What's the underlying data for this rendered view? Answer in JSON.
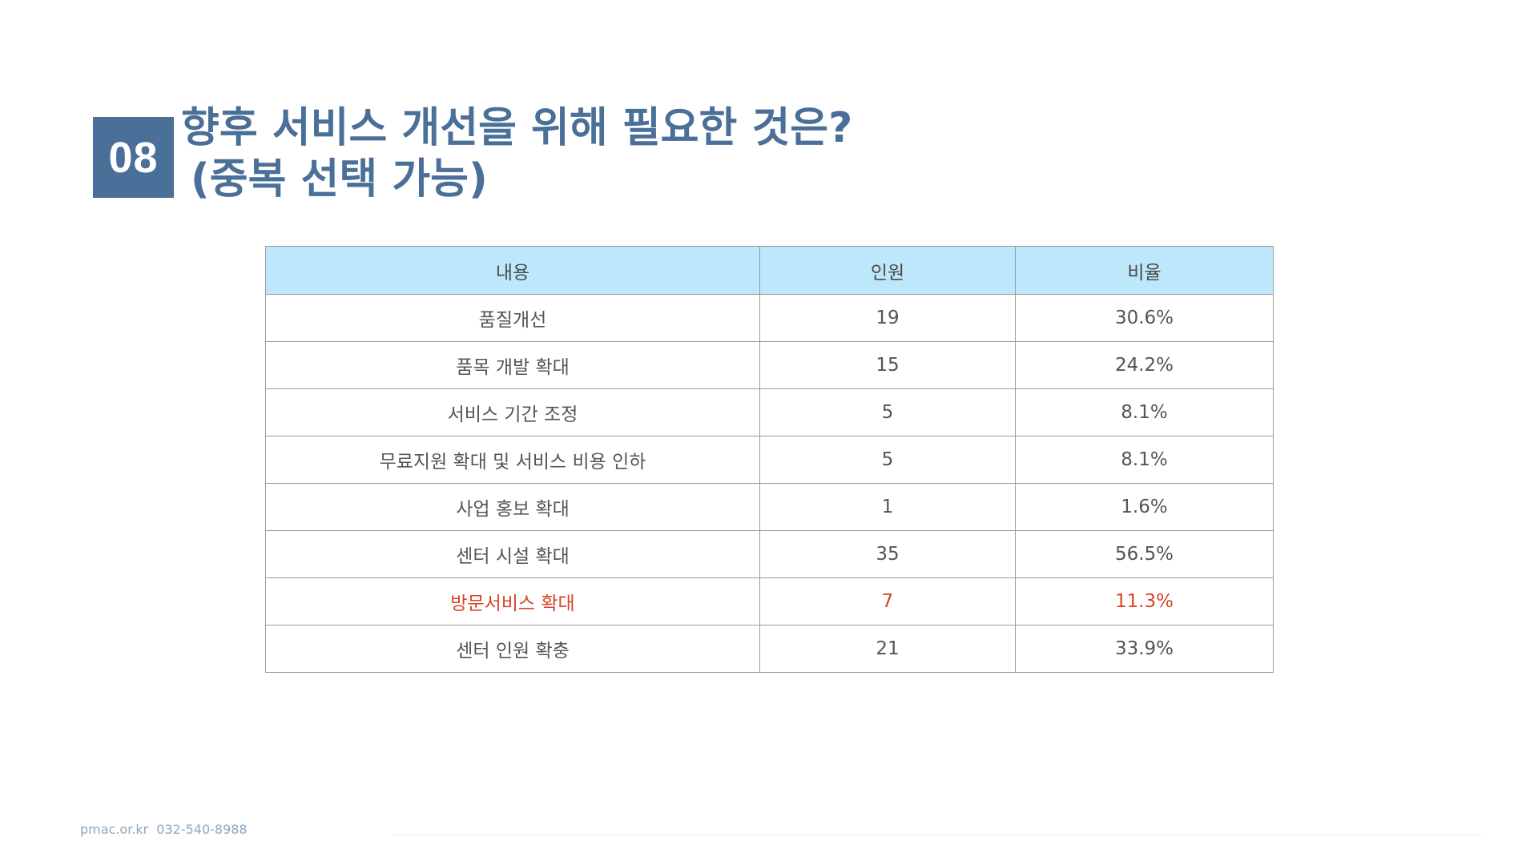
{
  "header": {
    "number": "08",
    "title_line1": "향후 서비스 개선을 위해 필요한 것은?",
    "title_line2": "(중복 선택 가능)"
  },
  "table": {
    "columns": [
      "내용",
      "인원",
      "비율"
    ],
    "rows": [
      {
        "item": "품질개선",
        "count": "19",
        "ratio": "30.6%",
        "highlight": false
      },
      {
        "item": "품목 개발 확대",
        "count": "15",
        "ratio": "24.2%",
        "highlight": false
      },
      {
        "item": "서비스 기간 조정",
        "count": "5",
        "ratio": "8.1%",
        "highlight": false
      },
      {
        "item": "무료지원 확대 및 서비스 비용 인하",
        "count": "5",
        "ratio": "8.1%",
        "highlight": false
      },
      {
        "item": "사업 홍보 확대",
        "count": "1",
        "ratio": "1.6%",
        "highlight": false
      },
      {
        "item": "센터 시설 확대",
        "count": "35",
        "ratio": "56.5%",
        "highlight": false
      },
      {
        "item": "방문서비스 확대",
        "count": "7",
        "ratio": "11.3%",
        "highlight": true
      },
      {
        "item": "센터 인원 확충",
        "count": "21",
        "ratio": "33.9%",
        "highlight": false
      }
    ]
  },
  "footer": {
    "website": "pmac.or.kr",
    "phone": "032-540-8988"
  },
  "colors": {
    "accent": "#4a6f98",
    "header_bg": "#bde8fb",
    "highlight": "#d9432b"
  }
}
